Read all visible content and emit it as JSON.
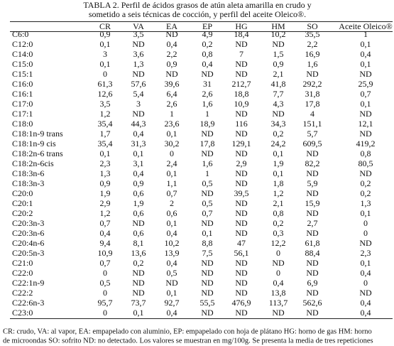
{
  "title": [
    "TABLA 2. Perfil de ácidos grasos de atún aleta amarilla en crudo y",
    "sometido a seis técnicas de cocción, y perfil del aceite Oleico®."
  ],
  "table": {
    "header": [
      "CR",
      "VA",
      "EA",
      "EP",
      "HG",
      "HM",
      "SO",
      "Aceite Oleico®"
    ],
    "rows": [
      [
        "C6:0",
        "0,9",
        "3,5",
        "ND",
        "4,9",
        "18,4",
        "10,2",
        "35,5",
        "1"
      ],
      [
        "C12:0",
        "0,1",
        "ND",
        "0,4",
        "0,2",
        "ND",
        "ND",
        "2,2",
        "0,1"
      ],
      [
        "C14:0",
        "3",
        "3,6",
        "2,2",
        "0,8",
        "7",
        "1,5",
        "16,9",
        "0,4"
      ],
      [
        "C15:0",
        "0,1",
        "1,3",
        "0,9",
        "0,4",
        "ND",
        "0,9",
        "1,6",
        "0,1"
      ],
      [
        "C15:1",
        "0",
        "ND",
        "ND",
        "ND",
        "ND",
        "2,1",
        "ND",
        "ND"
      ],
      [
        "C16:0",
        "61,3",
        "57,6",
        "39,6",
        "31",
        "212,7",
        "41,8",
        "292,2",
        "25,9"
      ],
      [
        "C16:1",
        "12,6",
        "5,4",
        "6,4",
        "2,6",
        "18,8",
        "7,7",
        "31,8",
        "0,7"
      ],
      [
        "C17:0",
        "3,5",
        "3",
        "2,6",
        "1,6",
        "10,9",
        "4,3",
        "17,8",
        "0,1"
      ],
      [
        "C17:1",
        "1,2",
        "ND",
        "1",
        "1",
        "ND",
        "ND",
        "4",
        "ND"
      ],
      [
        "C18:0",
        "35,4",
        "44,3",
        "23,6",
        "18,9",
        "116",
        "34,3",
        "151,1",
        "12,1"
      ],
      [
        "C18:1n-9 trans",
        "1,7",
        "0,4",
        "0,1",
        "ND",
        "ND",
        "0,2",
        "5,7",
        "ND"
      ],
      [
        "C18:1n-9 cis",
        "35,4",
        "31,3",
        "30,2",
        "17,8",
        "129,1",
        "24,2",
        "609,5",
        "419,2"
      ],
      [
        "C18:2n-6 trans",
        "0,1",
        "0,1",
        "0",
        "ND",
        "ND",
        "0,1",
        "ND",
        "0,8"
      ],
      [
        "C18:2n-6cis",
        "2,3",
        "3,1",
        "2,4",
        "1,6",
        "2,9",
        "1,9",
        "82,2",
        "80,5"
      ],
      [
        "C18:3n-6",
        "1,3",
        "0,4",
        "0,1",
        "1",
        "ND",
        "0,1",
        "ND",
        "ND"
      ],
      [
        "C18:3n-3",
        "0,9",
        "0,9",
        "1,1",
        "0,5",
        "ND",
        "1,8",
        "5,9",
        "0,2"
      ],
      [
        "C20:0",
        "1,9",
        "0,6",
        "0,7",
        "ND",
        "39,5",
        "1,2",
        "ND",
        "0,2"
      ],
      [
        "C20:1",
        "2,9",
        "1,9",
        "2",
        "0,5",
        "ND",
        "2,1",
        "15,9",
        "1,3"
      ],
      [
        "C20:2",
        "1,2",
        "0,6",
        "0,6",
        "0,7",
        "ND",
        "0,8",
        "ND",
        "0,1"
      ],
      [
        "C20:3n-3",
        "0,7",
        "ND",
        "0,1",
        "ND",
        "ND",
        "0,2",
        "2,7",
        "0"
      ],
      [
        "C20:3n-6",
        "0,4",
        "0,6",
        "0,4",
        "0,1",
        "ND",
        "0,3",
        "ND",
        "0"
      ],
      [
        "C20:4n-6",
        "9,4",
        "8,1",
        "10,2",
        "8,8",
        "47",
        "12,2",
        "61,8",
        "ND"
      ],
      [
        "C20:5n-3",
        "10,9",
        "13,6",
        "13,9",
        "7,5",
        "56,1",
        "0",
        "88,4",
        "2,3"
      ],
      [
        "C21:0",
        "0,7",
        "0,2",
        "0,4",
        "ND",
        "ND",
        "ND",
        "ND",
        "0,1"
      ],
      [
        "C22:0",
        "0",
        "ND",
        "0,5",
        "ND",
        "ND",
        "0",
        "ND",
        "0,4"
      ],
      [
        "C22:1n-9",
        "0,5",
        "ND",
        "ND",
        "ND",
        "ND",
        "0,4",
        "6,9",
        "0"
      ],
      [
        "C22:2",
        "0",
        "ND",
        "0,1",
        "ND",
        "ND",
        "13,8",
        "ND",
        "ND"
      ],
      [
        "C22:6n-3",
        "95,7",
        "73,7",
        "92,7",
        "55,5",
        "476,9",
        "113,7",
        "562,6",
        "0,4"
      ],
      [
        "C23:0",
        "0",
        "0,1",
        "0,4",
        "ND",
        "ND",
        "ND",
        "ND",
        "0,4"
      ]
    ]
  },
  "footnote": [
    "CR: crudo, VA: al vapor, EA: empapelado con aluminio, EP: empapelado con hoja de plátano HG: horno de gas HM: horno",
    "de microondas SO: sofrito ND: no detectado. Los valores se muestran en mg/100g. Se presenta la media de tres repeticiones"
  ]
}
